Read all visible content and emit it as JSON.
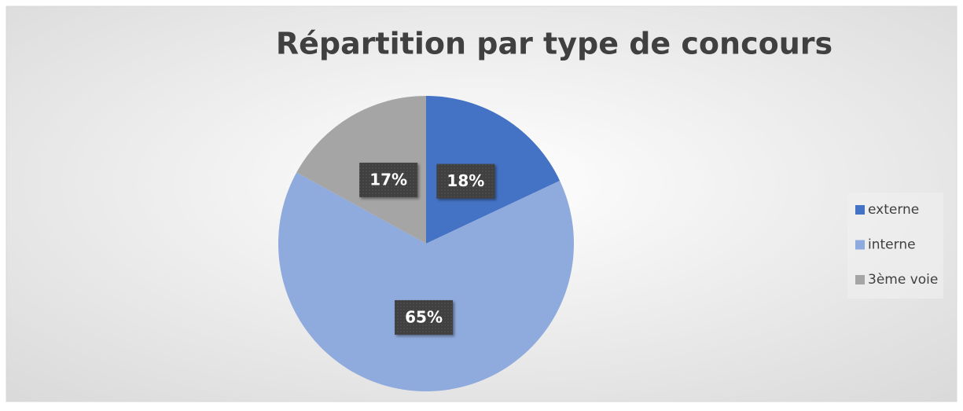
{
  "chart_data": {
    "type": "pie",
    "title": "Répartition par type de concours",
    "categories": [
      "externe",
      "interne",
      "3ème voie"
    ],
    "values": [
      18,
      65,
      17
    ],
    "value_labels": [
      "18%",
      "65%",
      "17%"
    ],
    "colors": [
      "#4472c4",
      "#8faadc",
      "#a5a5a5"
    ],
    "legend": "right"
  }
}
